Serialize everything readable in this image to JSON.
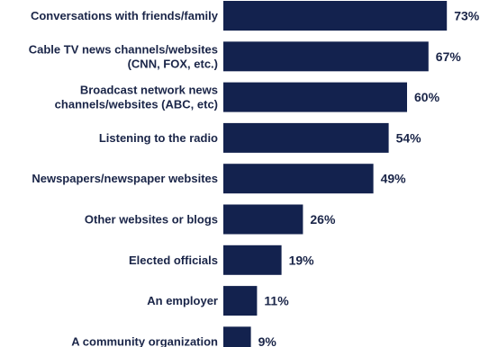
{
  "chart_data": {
    "type": "bar",
    "orientation": "horizontal",
    "categories": [
      [
        "Conversations with friends/family"
      ],
      [
        "Cable TV news channels/websites",
        "(CNN, FOX, etc.)"
      ],
      [
        "Broadcast network news",
        "channels/websites (ABC, etc)"
      ],
      [
        "Listening to the radio"
      ],
      [
        "Newspapers/newspaper websites"
      ],
      [
        "Other websites or blogs"
      ],
      [
        "Elected officials"
      ],
      [
        "An employer"
      ],
      [
        "A community organization"
      ]
    ],
    "values": [
      73,
      67,
      60,
      54,
      49,
      26,
      19,
      11,
      9
    ],
    "value_labels": [
      "73%",
      "67%",
      "60%",
      "54%",
      "49%",
      "26%",
      "19%",
      "11%",
      "9%"
    ],
    "xlim": [
      0,
      100
    ],
    "bar_color": "#13224e",
    "text_color": "#1a2548"
  }
}
